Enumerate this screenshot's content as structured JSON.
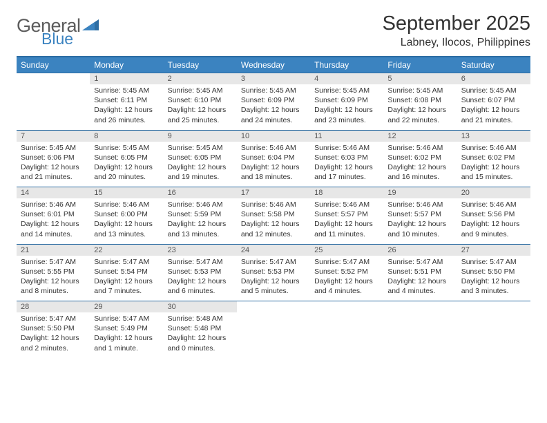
{
  "logo": {
    "text1": "General",
    "text2": "Blue"
  },
  "title": "September 2025",
  "location": "Labney, Ilocos, Philippines",
  "colors": {
    "header_bg": "#3b83c0",
    "header_border": "#2d6da3",
    "daynum_bg": "#e7e7e7",
    "text": "#333333",
    "logo_gray": "#5c5c5c",
    "logo_blue": "#3b83c0"
  },
  "weekdays": [
    "Sunday",
    "Monday",
    "Tuesday",
    "Wednesday",
    "Thursday",
    "Friday",
    "Saturday"
  ],
  "weeks": [
    {
      "nums": [
        "",
        "1",
        "2",
        "3",
        "4",
        "5",
        "6"
      ],
      "cells": [
        null,
        {
          "sr": "5:45 AM",
          "ss": "6:11 PM",
          "dl": "12 hours and 26 minutes."
        },
        {
          "sr": "5:45 AM",
          "ss": "6:10 PM",
          "dl": "12 hours and 25 minutes."
        },
        {
          "sr": "5:45 AM",
          "ss": "6:09 PM",
          "dl": "12 hours and 24 minutes."
        },
        {
          "sr": "5:45 AM",
          "ss": "6:09 PM",
          "dl": "12 hours and 23 minutes."
        },
        {
          "sr": "5:45 AM",
          "ss": "6:08 PM",
          "dl": "12 hours and 22 minutes."
        },
        {
          "sr": "5:45 AM",
          "ss": "6:07 PM",
          "dl": "12 hours and 21 minutes."
        }
      ]
    },
    {
      "nums": [
        "7",
        "8",
        "9",
        "10",
        "11",
        "12",
        "13"
      ],
      "cells": [
        {
          "sr": "5:45 AM",
          "ss": "6:06 PM",
          "dl": "12 hours and 21 minutes."
        },
        {
          "sr": "5:45 AM",
          "ss": "6:05 PM",
          "dl": "12 hours and 20 minutes."
        },
        {
          "sr": "5:45 AM",
          "ss": "6:05 PM",
          "dl": "12 hours and 19 minutes."
        },
        {
          "sr": "5:46 AM",
          "ss": "6:04 PM",
          "dl": "12 hours and 18 minutes."
        },
        {
          "sr": "5:46 AM",
          "ss": "6:03 PM",
          "dl": "12 hours and 17 minutes."
        },
        {
          "sr": "5:46 AM",
          "ss": "6:02 PM",
          "dl": "12 hours and 16 minutes."
        },
        {
          "sr": "5:46 AM",
          "ss": "6:02 PM",
          "dl": "12 hours and 15 minutes."
        }
      ]
    },
    {
      "nums": [
        "14",
        "15",
        "16",
        "17",
        "18",
        "19",
        "20"
      ],
      "cells": [
        {
          "sr": "5:46 AM",
          "ss": "6:01 PM",
          "dl": "12 hours and 14 minutes."
        },
        {
          "sr": "5:46 AM",
          "ss": "6:00 PM",
          "dl": "12 hours and 13 minutes."
        },
        {
          "sr": "5:46 AM",
          "ss": "5:59 PM",
          "dl": "12 hours and 13 minutes."
        },
        {
          "sr": "5:46 AM",
          "ss": "5:58 PM",
          "dl": "12 hours and 12 minutes."
        },
        {
          "sr": "5:46 AM",
          "ss": "5:57 PM",
          "dl": "12 hours and 11 minutes."
        },
        {
          "sr": "5:46 AM",
          "ss": "5:57 PM",
          "dl": "12 hours and 10 minutes."
        },
        {
          "sr": "5:46 AM",
          "ss": "5:56 PM",
          "dl": "12 hours and 9 minutes."
        }
      ]
    },
    {
      "nums": [
        "21",
        "22",
        "23",
        "24",
        "25",
        "26",
        "27"
      ],
      "cells": [
        {
          "sr": "5:47 AM",
          "ss": "5:55 PM",
          "dl": "12 hours and 8 minutes."
        },
        {
          "sr": "5:47 AM",
          "ss": "5:54 PM",
          "dl": "12 hours and 7 minutes."
        },
        {
          "sr": "5:47 AM",
          "ss": "5:53 PM",
          "dl": "12 hours and 6 minutes."
        },
        {
          "sr": "5:47 AM",
          "ss": "5:53 PM",
          "dl": "12 hours and 5 minutes."
        },
        {
          "sr": "5:47 AM",
          "ss": "5:52 PM",
          "dl": "12 hours and 4 minutes."
        },
        {
          "sr": "5:47 AM",
          "ss": "5:51 PM",
          "dl": "12 hours and 4 minutes."
        },
        {
          "sr": "5:47 AM",
          "ss": "5:50 PM",
          "dl": "12 hours and 3 minutes."
        }
      ]
    },
    {
      "nums": [
        "28",
        "29",
        "30",
        "",
        "",
        "",
        ""
      ],
      "cells": [
        {
          "sr": "5:47 AM",
          "ss": "5:50 PM",
          "dl": "12 hours and 2 minutes."
        },
        {
          "sr": "5:47 AM",
          "ss": "5:49 PM",
          "dl": "12 hours and 1 minute."
        },
        {
          "sr": "5:48 AM",
          "ss": "5:48 PM",
          "dl": "12 hours and 0 minutes."
        },
        null,
        null,
        null,
        null
      ]
    }
  ],
  "labels": {
    "sunrise": "Sunrise:",
    "sunset": "Sunset:",
    "daylight": "Daylight:"
  }
}
